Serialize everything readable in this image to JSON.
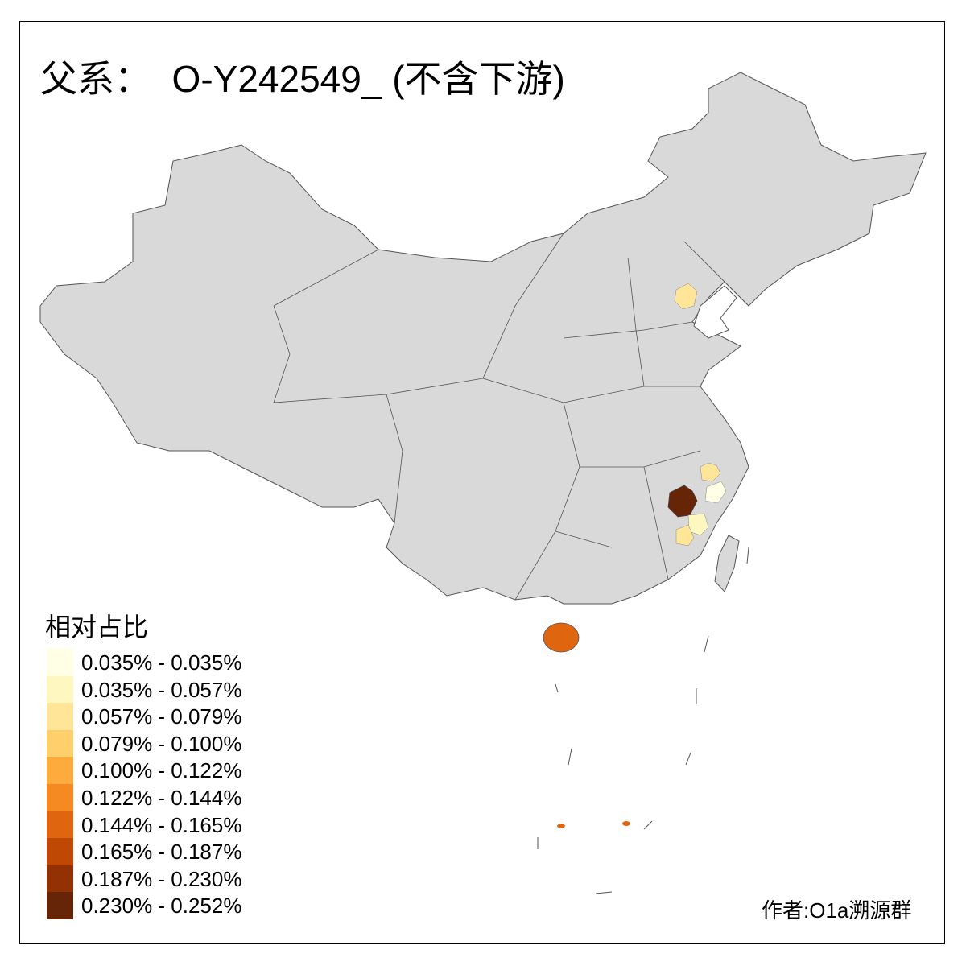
{
  "title": "父系：  O-Y242549_ (不含下游)",
  "legend": {
    "title": "相对占比",
    "items": [
      {
        "label": "0.035% - 0.035%",
        "color": "#FFFFE5"
      },
      {
        "label": "0.035% - 0.057%",
        "color": "#FFF7C0"
      },
      {
        "label": "0.057% - 0.079%",
        "color": "#FEE597"
      },
      {
        "label": "0.079% - 0.100%",
        "color": "#FECF6A"
      },
      {
        "label": "0.100% - 0.122%",
        "color": "#FDAB3D"
      },
      {
        "label": "0.122% - 0.144%",
        "color": "#F58A22"
      },
      {
        "label": "0.144% - 0.165%",
        "color": "#E0650F"
      },
      {
        "label": "0.165% - 0.187%",
        "color": "#BF4805"
      },
      {
        "label": "0.187% - 0.230%",
        "color": "#923104"
      },
      {
        "label": "0.230% - 0.252%",
        "color": "#662506"
      }
    ]
  },
  "colors": {
    "no_data": "#D9D9D9",
    "boundary": "#555555"
  },
  "author": "作者:O1a溯源群"
}
